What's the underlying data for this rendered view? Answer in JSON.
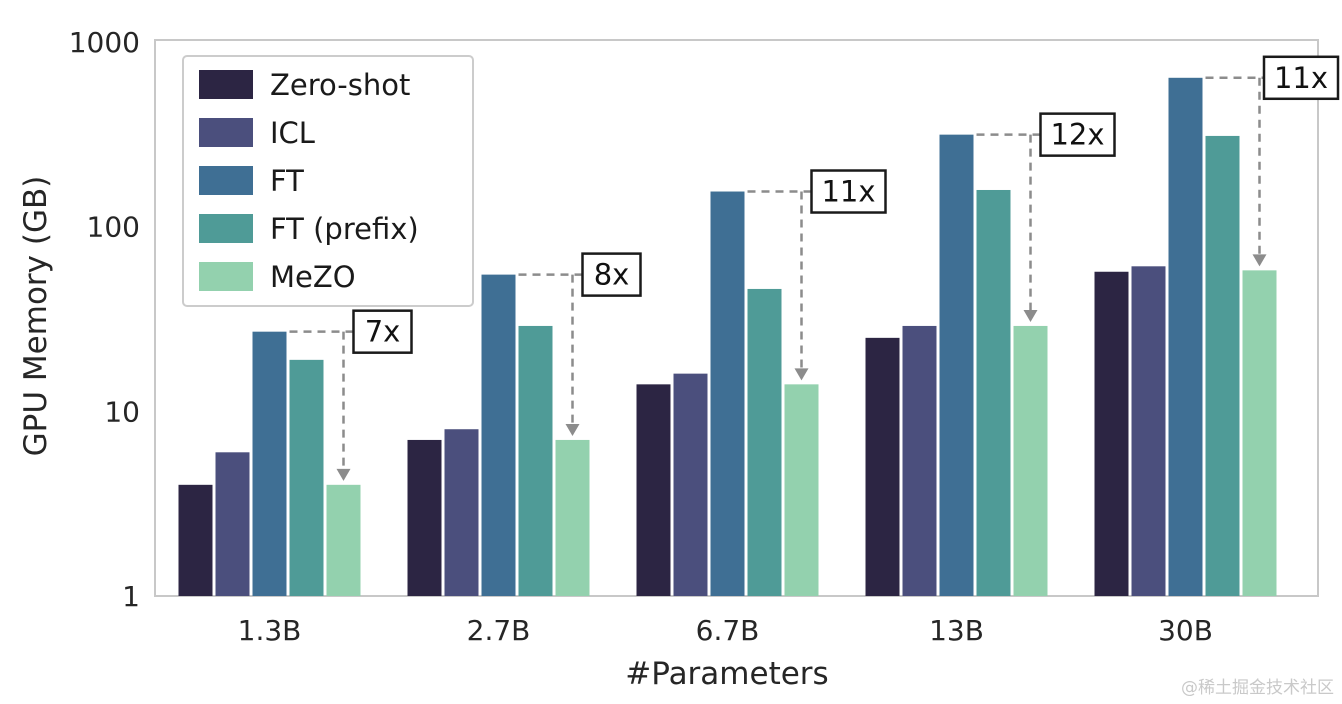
{
  "chart_data": {
    "type": "bar",
    "title": "",
    "xlabel": "#Parameters",
    "ylabel": "GPU Memory (GB)",
    "yscale": "log",
    "ylim": [
      1,
      1000
    ],
    "yticks": [
      1,
      10,
      100,
      1000
    ],
    "categories": [
      "1.3B",
      "2.7B",
      "6.7B",
      "13B",
      "30B"
    ],
    "series": [
      {
        "name": "Zero-shot",
        "color": "#2c2543",
        "values": [
          4,
          7,
          14,
          25,
          57
        ]
      },
      {
        "name": "ICL",
        "color": "#4b4f7d",
        "values": [
          6,
          8,
          16,
          29,
          61
        ]
      },
      {
        "name": "FT",
        "color": "#3f6f94",
        "values": [
          27,
          55,
          155,
          315,
          640
        ]
      },
      {
        "name": "FT (prefix)",
        "color": "#4f9b97",
        "values": [
          19,
          29,
          46,
          158,
          310
        ]
      },
      {
        "name": "MeZO",
        "color": "#93d1ae",
        "values": [
          4,
          7,
          14,
          29,
          58
        ]
      }
    ],
    "annotations": [
      {
        "category": "1.3B",
        "label": "7x"
      },
      {
        "category": "2.7B",
        "label": "8x"
      },
      {
        "category": "6.7B",
        "label": "11x"
      },
      {
        "category": "13B",
        "label": "12x"
      },
      {
        "category": "30B",
        "label": "11x"
      }
    ],
    "legend_position": "upper left",
    "grid": false
  },
  "watermark": "@稀土掘金技术社区",
  "colors": {
    "axis_border": "#c8c8c8",
    "annotation_line": "#8c8c8c",
    "annotation_box_border": "#1a1a1a",
    "tick_text": "#262626",
    "legend_border": "#cccccc",
    "watermark_text": "#c9c9c9"
  }
}
